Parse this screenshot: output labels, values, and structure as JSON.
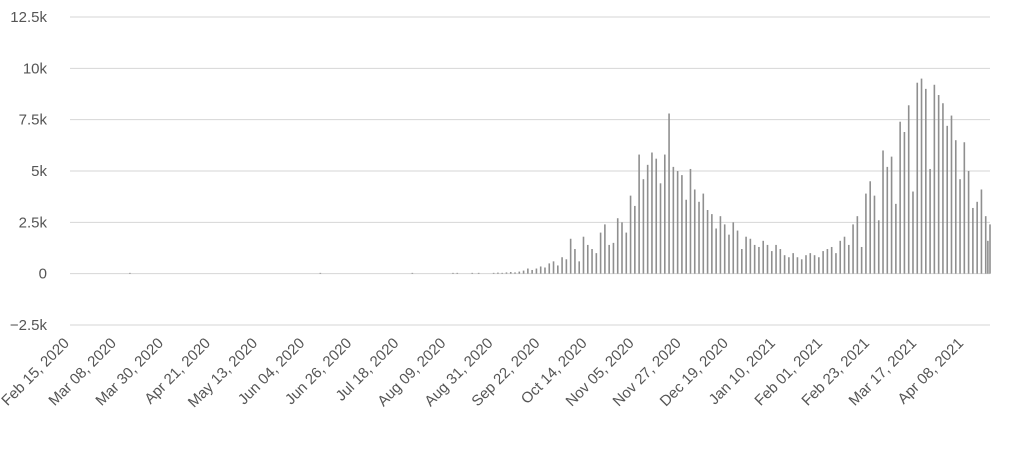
{
  "chart_data": {
    "type": "bar",
    "title": "",
    "xlabel": "",
    "ylabel": "",
    "x_start": "2020-02-15",
    "x_end": "2021-04-20",
    "ylim": [
      -2500,
      13000
    ],
    "yticks": [
      {
        "value": 12500,
        "label": "12.5k"
      },
      {
        "value": 10000,
        "label": "10k"
      },
      {
        "value": 7500,
        "label": "7.5k"
      },
      {
        "value": 5000,
        "label": "5k"
      },
      {
        "value": 2500,
        "label": "2.5k"
      },
      {
        "value": 0,
        "label": "0"
      },
      {
        "value": -2500,
        "label": "−2.5k"
      }
    ],
    "xticks": [
      {
        "date": "2020-02-15",
        "label": "Feb 15, 2020"
      },
      {
        "date": "2020-03-08",
        "label": "Mar 08, 2020"
      },
      {
        "date": "2020-03-30",
        "label": "Mar 30, 2020"
      },
      {
        "date": "2020-04-21",
        "label": "Apr 21, 2020"
      },
      {
        "date": "2020-05-13",
        "label": "May 13, 2020"
      },
      {
        "date": "2020-06-04",
        "label": "Jun 04, 2020"
      },
      {
        "date": "2020-06-26",
        "label": "Jun 26, 2020"
      },
      {
        "date": "2020-07-18",
        "label": "Jul 18, 2020"
      },
      {
        "date": "2020-08-09",
        "label": "Aug 09, 2020"
      },
      {
        "date": "2020-08-31",
        "label": "Aug 31, 2020"
      },
      {
        "date": "2020-09-22",
        "label": "Sep 22, 2020"
      },
      {
        "date": "2020-10-14",
        "label": "Oct 14, 2020"
      },
      {
        "date": "2020-11-05",
        "label": "Nov 05, 2020"
      },
      {
        "date": "2020-11-27",
        "label": "Nov 27, 2020"
      },
      {
        "date": "2020-12-19",
        "label": "Dec 19, 2020"
      },
      {
        "date": "2021-01-10",
        "label": "Jan 10, 2021"
      },
      {
        "date": "2021-02-01",
        "label": "Feb 01, 2021"
      },
      {
        "date": "2021-02-23",
        "label": "Feb 23, 2021"
      },
      {
        "date": "2021-03-17",
        "label": "Mar 17, 2021"
      },
      {
        "date": "2021-04-08",
        "label": "Apr 08, 2021"
      }
    ],
    "grid": true,
    "bar_color": "#8f8f8f",
    "grid_color": "#d6d6d6",
    "series": [
      {
        "points": [
          {
            "x": "2020-03-14",
            "y": 0
          },
          {
            "x": "2020-06-11",
            "y": 0
          },
          {
            "x": "2020-07-24",
            "y": 0
          },
          {
            "x": "2020-08-12",
            "y": 10
          },
          {
            "x": "2020-08-14",
            "y": 10
          },
          {
            "x": "2020-08-21",
            "y": 20
          },
          {
            "x": "2020-08-24",
            "y": 20
          },
          {
            "x": "2020-08-31",
            "y": 40
          },
          {
            "x": "2020-09-02",
            "y": 50
          },
          {
            "x": "2020-09-04",
            "y": 40
          },
          {
            "x": "2020-09-06",
            "y": 60
          },
          {
            "x": "2020-09-08",
            "y": 80
          },
          {
            "x": "2020-09-10",
            "y": 60
          },
          {
            "x": "2020-09-12",
            "y": 100
          },
          {
            "x": "2020-09-14",
            "y": 150
          },
          {
            "x": "2020-09-16",
            "y": 250
          },
          {
            "x": "2020-09-18",
            "y": 180
          },
          {
            "x": "2020-09-20",
            "y": 250
          },
          {
            "x": "2020-09-22",
            "y": 350
          },
          {
            "x": "2020-09-24",
            "y": 300
          },
          {
            "x": "2020-09-26",
            "y": 500
          },
          {
            "x": "2020-09-28",
            "y": 600
          },
          {
            "x": "2020-09-30",
            "y": 400
          },
          {
            "x": "2020-10-02",
            "y": 800
          },
          {
            "x": "2020-10-04",
            "y": 700
          },
          {
            "x": "2020-10-06",
            "y": 1700
          },
          {
            "x": "2020-10-08",
            "y": 1200
          },
          {
            "x": "2020-10-10",
            "y": 600
          },
          {
            "x": "2020-10-12",
            "y": 1800
          },
          {
            "x": "2020-10-14",
            "y": 1400
          },
          {
            "x": "2020-10-16",
            "y": 1200
          },
          {
            "x": "2020-10-18",
            "y": 1000
          },
          {
            "x": "2020-10-20",
            "y": 2000
          },
          {
            "x": "2020-10-22",
            "y": 2400
          },
          {
            "x": "2020-10-24",
            "y": 1400
          },
          {
            "x": "2020-10-26",
            "y": 1500
          },
          {
            "x": "2020-10-28",
            "y": 2700
          },
          {
            "x": "2020-10-30",
            "y": 2500
          },
          {
            "x": "2020-11-01",
            "y": 2000
          },
          {
            "x": "2020-11-03",
            "y": 3800
          },
          {
            "x": "2020-11-05",
            "y": 3300
          },
          {
            "x": "2020-11-07",
            "y": 5800
          },
          {
            "x": "2020-11-09",
            "y": 4600
          },
          {
            "x": "2020-11-11",
            "y": 5300
          },
          {
            "x": "2020-11-13",
            "y": 5900
          },
          {
            "x": "2020-11-15",
            "y": 5600
          },
          {
            "x": "2020-11-17",
            "y": 4400
          },
          {
            "x": "2020-11-19",
            "y": 5800
          },
          {
            "x": "2020-11-21",
            "y": 7800
          },
          {
            "x": "2020-11-23",
            "y": 5200
          },
          {
            "x": "2020-11-25",
            "y": 5000
          },
          {
            "x": "2020-11-27",
            "y": 4800
          },
          {
            "x": "2020-11-29",
            "y": 3600
          },
          {
            "x": "2020-12-01",
            "y": 5100
          },
          {
            "x": "2020-12-03",
            "y": 4100
          },
          {
            "x": "2020-12-05",
            "y": 3500
          },
          {
            "x": "2020-12-07",
            "y": 3900
          },
          {
            "x": "2020-12-09",
            "y": 3100
          },
          {
            "x": "2020-12-11",
            "y": 2900
          },
          {
            "x": "2020-12-13",
            "y": 2200
          },
          {
            "x": "2020-12-15",
            "y": 2800
          },
          {
            "x": "2020-12-17",
            "y": 2400
          },
          {
            "x": "2020-12-19",
            "y": 1900
          },
          {
            "x": "2020-12-21",
            "y": 2500
          },
          {
            "x": "2020-12-23",
            "y": 2100
          },
          {
            "x": "2020-12-25",
            "y": 1200
          },
          {
            "x": "2020-12-27",
            "y": 1800
          },
          {
            "x": "2020-12-29",
            "y": 1700
          },
          {
            "x": "2020-12-31",
            "y": 1400
          },
          {
            "x": "2021-01-02",
            "y": 1300
          },
          {
            "x": "2021-01-04",
            "y": 1600
          },
          {
            "x": "2021-01-06",
            "y": 1400
          },
          {
            "x": "2021-01-08",
            "y": 1100
          },
          {
            "x": "2021-01-10",
            "y": 1400
          },
          {
            "x": "2021-01-12",
            "y": 1200
          },
          {
            "x": "2021-01-14",
            "y": 900
          },
          {
            "x": "2021-01-16",
            "y": 800
          },
          {
            "x": "2021-01-18",
            "y": 1000
          },
          {
            "x": "2021-01-20",
            "y": 800
          },
          {
            "x": "2021-01-22",
            "y": 700
          },
          {
            "x": "2021-01-24",
            "y": 900
          },
          {
            "x": "2021-01-26",
            "y": 1000
          },
          {
            "x": "2021-01-28",
            "y": 900
          },
          {
            "x": "2021-01-30",
            "y": 800
          },
          {
            "x": "2021-02-01",
            "y": 1100
          },
          {
            "x": "2021-02-03",
            "y": 1200
          },
          {
            "x": "2021-02-05",
            "y": 1300
          },
          {
            "x": "2021-02-07",
            "y": 1000
          },
          {
            "x": "2021-02-09",
            "y": 1600
          },
          {
            "x": "2021-02-11",
            "y": 1800
          },
          {
            "x": "2021-02-13",
            "y": 1400
          },
          {
            "x": "2021-02-15",
            "y": 2400
          },
          {
            "x": "2021-02-17",
            "y": 2800
          },
          {
            "x": "2021-02-19",
            "y": 1300
          },
          {
            "x": "2021-02-21",
            "y": 3900
          },
          {
            "x": "2021-02-23",
            "y": 4500
          },
          {
            "x": "2021-02-25",
            "y": 3800
          },
          {
            "x": "2021-02-27",
            "y": 2600
          },
          {
            "x": "2021-03-01",
            "y": 6000
          },
          {
            "x": "2021-03-03",
            "y": 5200
          },
          {
            "x": "2021-03-05",
            "y": 5700
          },
          {
            "x": "2021-03-07",
            "y": 3400
          },
          {
            "x": "2021-03-09",
            "y": 7400
          },
          {
            "x": "2021-03-11",
            "y": 6900
          },
          {
            "x": "2021-03-13",
            "y": 8200
          },
          {
            "x": "2021-03-15",
            "y": 4000
          },
          {
            "x": "2021-03-17",
            "y": 9300
          },
          {
            "x": "2021-03-19",
            "y": 9500
          },
          {
            "x": "2021-03-21",
            "y": 9000
          },
          {
            "x": "2021-03-23",
            "y": 5100
          },
          {
            "x": "2021-03-25",
            "y": 9200
          },
          {
            "x": "2021-03-27",
            "y": 8700
          },
          {
            "x": "2021-03-29",
            "y": 8300
          },
          {
            "x": "2021-03-31",
            "y": 7200
          },
          {
            "x": "2021-04-02",
            "y": 7700
          },
          {
            "x": "2021-04-04",
            "y": 6500
          },
          {
            "x": "2021-04-06",
            "y": 4600
          },
          {
            "x": "2021-04-08",
            "y": 6400
          },
          {
            "x": "2021-04-10",
            "y": 5000
          },
          {
            "x": "2021-04-12",
            "y": 3200
          },
          {
            "x": "2021-04-14",
            "y": 3500
          },
          {
            "x": "2021-04-16",
            "y": 4100
          },
          {
            "x": "2021-04-18",
            "y": 2800
          },
          {
            "x": "2021-04-19",
            "y": 1600
          },
          {
            "x": "2021-04-20",
            "y": 2400
          }
        ]
      }
    ]
  }
}
